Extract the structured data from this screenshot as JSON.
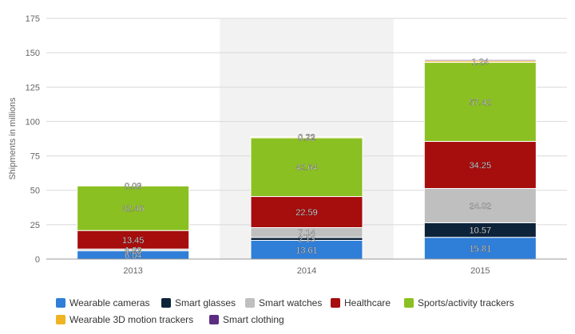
{
  "chart_data": {
    "type": "bar",
    "stacked": true,
    "categories": [
      "2013",
      "2014",
      "2015"
    ],
    "highlighted_category": "2014",
    "ylabel": "Shipments in millions",
    "ylim": [
      0,
      175
    ],
    "yticks": [
      0,
      25,
      50,
      75,
      100,
      125,
      150,
      175
    ],
    "grid": true,
    "legend_position": "bottom",
    "series": [
      {
        "name": "Wearable cameras",
        "color": "#2f7ed8",
        "values": [
          6.04,
          13.61,
          15.81
        ]
      },
      {
        "name": "Smart glasses",
        "color": "#0d233a",
        "values": [
          0.03,
          2.13,
          10.57
        ]
      },
      {
        "name": "Smart watches",
        "color": "#bfbfbf",
        "values": [
          1.23,
          7.14,
          24.92
        ]
      },
      {
        "name": "Healthcare",
        "color": "#a60d0d",
        "values": [
          13.45,
          22.59,
          34.25
        ]
      },
      {
        "name": "Sports/activity trackers",
        "color": "#8ac021",
        "values": [
          32.46,
          42.64,
          57.42
        ]
      },
      {
        "name": "Wearable 3D motion trackers",
        "color": "#f0b323",
        "values": [
          0.03,
          0.72,
          1.24
        ]
      },
      {
        "name": "Smart clothing",
        "color": "#5c2d82",
        "values": [
          0.0,
          0.22,
          0.83
        ]
      }
    ],
    "labels_shown": [
      [
        true,
        true,
        true
      ],
      [
        true,
        true,
        true
      ],
      [
        true,
        true,
        true
      ],
      [
        true,
        true,
        true
      ],
      [
        true,
        true,
        true
      ],
      [
        true,
        true,
        true
      ],
      [
        true,
        true,
        false
      ]
    ]
  }
}
